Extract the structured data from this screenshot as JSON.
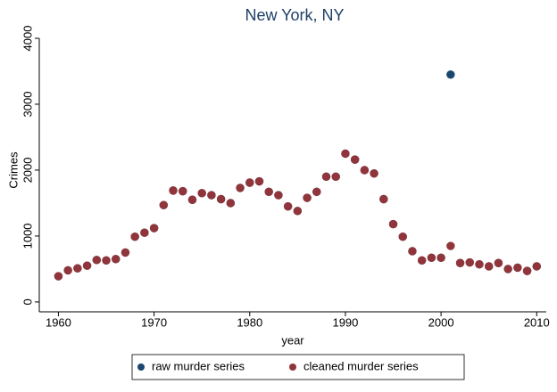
{
  "chart_data": {
    "type": "scatter",
    "title": "New York, NY",
    "x_label": "year",
    "y_label": "Crimes",
    "x": [
      1960,
      1961,
      1962,
      1963,
      1964,
      1965,
      1966,
      1967,
      1968,
      1969,
      1970,
      1971,
      1972,
      1973,
      1974,
      1975,
      1976,
      1977,
      1978,
      1979,
      1980,
      1981,
      1982,
      1983,
      1984,
      1985,
      1986,
      1987,
      1988,
      1989,
      1990,
      1991,
      1992,
      1993,
      1994,
      1995,
      1996,
      1997,
      1998,
      1999,
      2000,
      2001,
      2002,
      2003,
      2004,
      2005,
      2006,
      2007,
      2008,
      2009,
      2010
    ],
    "series": [
      {
        "name": "raw murder series",
        "color": "#1a476f",
        "values": [
          390,
          480,
          510,
          550,
          636,
          630,
          650,
          750,
          990,
          1050,
          1120,
          1470,
          1690,
          1680,
          1550,
          1650,
          1620,
          1560,
          1500,
          1730,
          1810,
          1830,
          1670,
          1620,
          1450,
          1380,
          1580,
          1670,
          1900,
          1900,
          2250,
          2160,
          2000,
          1950,
          1560,
          1180,
          990,
          770,
          630,
          670,
          670,
          3450,
          590,
          600,
          570,
          540,
          590,
          500,
          520,
          470,
          540
        ]
      },
      {
        "name": "cleaned murder series",
        "color": "#90353b",
        "values": [
          390,
          480,
          510,
          550,
          636,
          630,
          650,
          750,
          990,
          1050,
          1120,
          1470,
          1690,
          1680,
          1550,
          1650,
          1620,
          1560,
          1500,
          1730,
          1810,
          1830,
          1670,
          1620,
          1450,
          1380,
          1580,
          1670,
          1900,
          1900,
          2250,
          2160,
          2000,
          1950,
          1560,
          1180,
          990,
          770,
          630,
          670,
          670,
          850,
          590,
          600,
          570,
          540,
          590,
          500,
          520,
          470,
          540
        ]
      }
    ],
    "xlim": [
      1958,
      2011
    ],
    "xticks": [
      1960,
      1970,
      1980,
      1990,
      2000,
      2010
    ],
    "ylim": [
      -150,
      4000
    ],
    "yticks": [
      0,
      1000,
      2000,
      3000,
      4000
    ],
    "grid": false
  }
}
